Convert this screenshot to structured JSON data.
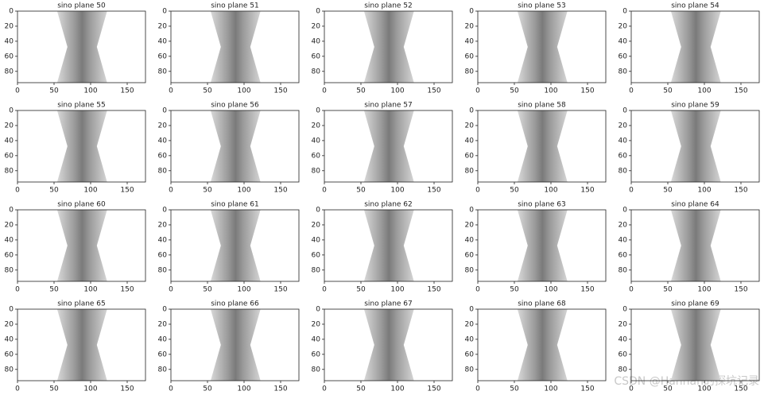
{
  "charts": [
    {
      "type": "image",
      "title": "sino plane 50",
      "xlim": [
        0,
        175
      ],
      "ylim": [
        95,
        0
      ],
      "xticks": [
        0,
        50,
        100,
        150
      ],
      "yticks": [
        0,
        20,
        40,
        60,
        80
      ]
    },
    {
      "type": "image",
      "title": "sino plane 51",
      "xlim": [
        0,
        175
      ],
      "ylim": [
        95,
        0
      ],
      "xticks": [
        0,
        50,
        100,
        150
      ],
      "yticks": [
        0,
        20,
        40,
        60,
        80
      ]
    },
    {
      "type": "image",
      "title": "sino plane 52",
      "xlim": [
        0,
        175
      ],
      "ylim": [
        95,
        0
      ],
      "xticks": [
        0,
        50,
        100,
        150
      ],
      "yticks": [
        0,
        20,
        40,
        60,
        80
      ]
    },
    {
      "type": "image",
      "title": "sino plane 53",
      "xlim": [
        0,
        175
      ],
      "ylim": [
        95,
        0
      ],
      "xticks": [
        0,
        50,
        100,
        150
      ],
      "yticks": [
        0,
        20,
        40,
        60,
        80
      ]
    },
    {
      "type": "image",
      "title": "sino plane 54",
      "xlim": [
        0,
        175
      ],
      "ylim": [
        95,
        0
      ],
      "xticks": [
        0,
        50,
        100,
        150
      ],
      "yticks": [
        0,
        20,
        40,
        60,
        80
      ]
    },
    {
      "type": "image",
      "title": "sino plane 55",
      "xlim": [
        0,
        175
      ],
      "ylim": [
        95,
        0
      ],
      "xticks": [
        0,
        50,
        100,
        150
      ],
      "yticks": [
        0,
        20,
        40,
        60,
        80
      ]
    },
    {
      "type": "image",
      "title": "sino plane 56",
      "xlim": [
        0,
        175
      ],
      "ylim": [
        95,
        0
      ],
      "xticks": [
        0,
        50,
        100,
        150
      ],
      "yticks": [
        0,
        20,
        40,
        60,
        80
      ]
    },
    {
      "type": "image",
      "title": "sino plane 57",
      "xlim": [
        0,
        175
      ],
      "ylim": [
        95,
        0
      ],
      "xticks": [
        0,
        50,
        100,
        150
      ],
      "yticks": [
        0,
        20,
        40,
        60,
        80
      ]
    },
    {
      "type": "image",
      "title": "sino plane 58",
      "xlim": [
        0,
        175
      ],
      "ylim": [
        95,
        0
      ],
      "xticks": [
        0,
        50,
        100,
        150
      ],
      "yticks": [
        0,
        20,
        40,
        60,
        80
      ]
    },
    {
      "type": "image",
      "title": "sino plane 59",
      "xlim": [
        0,
        175
      ],
      "ylim": [
        95,
        0
      ],
      "xticks": [
        0,
        50,
        100,
        150
      ],
      "yticks": [
        0,
        20,
        40,
        60,
        80
      ]
    },
    {
      "type": "image",
      "title": "sino plane 60",
      "xlim": [
        0,
        175
      ],
      "ylim": [
        95,
        0
      ],
      "xticks": [
        0,
        50,
        100,
        150
      ],
      "yticks": [
        0,
        20,
        40,
        60,
        80
      ]
    },
    {
      "type": "image",
      "title": "sino plane 61",
      "xlim": [
        0,
        175
      ],
      "ylim": [
        95,
        0
      ],
      "xticks": [
        0,
        50,
        100,
        150
      ],
      "yticks": [
        0,
        20,
        40,
        60,
        80
      ]
    },
    {
      "type": "image",
      "title": "sino plane 62",
      "xlim": [
        0,
        175
      ],
      "ylim": [
        95,
        0
      ],
      "xticks": [
        0,
        50,
        100,
        150
      ],
      "yticks": [
        0,
        20,
        40,
        60,
        80
      ]
    },
    {
      "type": "image",
      "title": "sino plane 63",
      "xlim": [
        0,
        175
      ],
      "ylim": [
        95,
        0
      ],
      "xticks": [
        0,
        50,
        100,
        150
      ],
      "yticks": [
        0,
        20,
        40,
        60,
        80
      ]
    },
    {
      "type": "image",
      "title": "sino plane 64",
      "xlim": [
        0,
        175
      ],
      "ylim": [
        95,
        0
      ],
      "xticks": [
        0,
        50,
        100,
        150
      ],
      "yticks": [
        0,
        20,
        40,
        60,
        80
      ]
    },
    {
      "type": "image",
      "title": "sino plane 65",
      "xlim": [
        0,
        175
      ],
      "ylim": [
        95,
        0
      ],
      "xticks": [
        0,
        50,
        100,
        150
      ],
      "yticks": [
        0,
        20,
        40,
        60,
        80
      ]
    },
    {
      "type": "image",
      "title": "sino plane 66",
      "xlim": [
        0,
        175
      ],
      "ylim": [
        95,
        0
      ],
      "xticks": [
        0,
        50,
        100,
        150
      ],
      "yticks": [
        0,
        20,
        40,
        60,
        80
      ]
    },
    {
      "type": "image",
      "title": "sino plane 67",
      "xlim": [
        0,
        175
      ],
      "ylim": [
        95,
        0
      ],
      "xticks": [
        0,
        50,
        100,
        150
      ],
      "yticks": [
        0,
        20,
        40,
        60,
        80
      ]
    },
    {
      "type": "image",
      "title": "sino plane 68",
      "xlim": [
        0,
        175
      ],
      "ylim": [
        95,
        0
      ],
      "xticks": [
        0,
        50,
        100,
        150
      ],
      "yticks": [
        0,
        20,
        40,
        60,
        80
      ]
    },
    {
      "type": "image",
      "title": "sino plane 69",
      "xlim": [
        0,
        175
      ],
      "ylim": [
        95,
        0
      ],
      "xticks": [
        0,
        50,
        100,
        150
      ],
      "yticks": [
        0,
        20,
        40,
        60,
        80
      ]
    }
  ],
  "watermark": "CSDN @Hannah的探坑记录"
}
